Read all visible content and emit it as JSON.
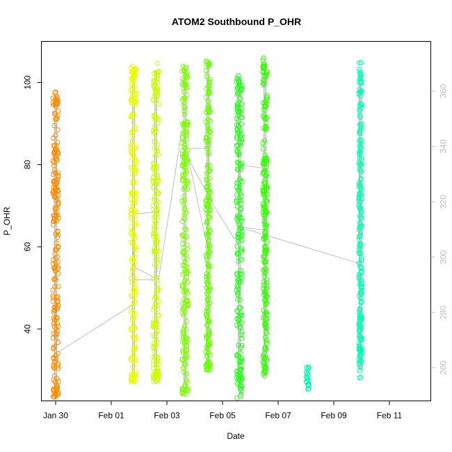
{
  "chart_data": {
    "type": "scatter",
    "title": "ATOM2 Southbound P_OHR",
    "xlabel": "Date",
    "ylabel": "P_OHR",
    "x_unit": "days since Jan 29 (x tick labels show dates)",
    "xlim": [
      -0.55,
      12.2
    ],
    "ylim": [
      22.5,
      110
    ],
    "x_ticks": [
      {
        "value": 1,
        "label": "Jan 30"
      },
      {
        "value": 3,
        "label": "Feb 01"
      },
      {
        "value": 5,
        "label": "Feb 03"
      },
      {
        "value": 7,
        "label": "Feb 05"
      },
      {
        "value": 9,
        "label": "Feb 07"
      },
      {
        "value": 11,
        "label": "Feb 09"
      },
      {
        "value": 13,
        "label": "Feb 11"
      }
    ],
    "y_ticks": [
      40,
      60,
      80,
      100
    ],
    "y2_ticks": [
      260,
      280,
      300,
      320,
      340,
      360
    ],
    "y2lim": [
      248,
      378
    ],
    "grid": false,
    "legend": "none",
    "colors": {
      "frame": "#000000",
      "trace": "#bebebe",
      "right_axis": "#bebebe"
    },
    "series": [
      {
        "color": "#ff8c00",
        "x_range": [
          0.9,
          1.1
        ],
        "y_min": 24,
        "y_max": 98,
        "clusters": [
          [
            24.5,
            12
          ],
          [
            95,
            12
          ]
        ]
      },
      {
        "color": "#e6ff00",
        "x_range": [
          3.7,
          3.9
        ],
        "y_min": 27,
        "y_max": 104,
        "clusters": [
          [
            28,
            10
          ],
          [
            103,
            10
          ]
        ]
      },
      {
        "color": "#ccff00",
        "x_range": [
          4.5,
          4.7
        ],
        "y_min": 27,
        "y_max": 105,
        "clusters": [
          [
            28,
            10
          ]
        ]
      },
      {
        "color": "#7fff00",
        "x_range": [
          5.55,
          5.75
        ],
        "y_min": 24,
        "y_max": 104,
        "clusters": [
          [
            25,
            12
          ]
        ]
      },
      {
        "color": "#66ff00",
        "x_range": [
          6.4,
          6.55
        ],
        "y_min": 30,
        "y_max": 106,
        "clusters": [
          [
            31,
            8
          ]
        ]
      },
      {
        "color": "#26ff1a",
        "x_range": [
          7.5,
          7.7
        ],
        "y_min": 23,
        "y_max": 102,
        "clusters": [
          [
            27,
            10
          ]
        ]
      },
      {
        "color": "#33ff00",
        "x_range": [
          8.45,
          8.6
        ],
        "y_min": 28,
        "y_max": 106,
        "clusters": [
          [
            32,
            6
          ]
        ]
      },
      {
        "color": "#00ffb0",
        "x_range": [
          10.0,
          10.1
        ],
        "y_min": 26,
        "y_max": 31,
        "clusters": [
          [
            26.5,
            4
          ]
        ]
      },
      {
        "color": "#00ffb0",
        "x_range": [
          11.9,
          12.0
        ],
        "y_min": 28,
        "y_max": 105,
        "clusters": [
          [
            34,
            8
          ]
        ]
      }
    ],
    "trace_line": [
      [
        0.9,
        36
      ],
      [
        1.05,
        37
      ],
      [
        0.95,
        60
      ],
      [
        1.05,
        40
      ],
      [
        1.0,
        34
      ],
      [
        3.8,
        46
      ],
      [
        3.75,
        74
      ],
      [
        3.85,
        52
      ],
      [
        4.6,
        52
      ],
      [
        4.65,
        68.5
      ],
      [
        3.8,
        68
      ],
      [
        3.85,
        55
      ],
      [
        4.7,
        52
      ],
      [
        5.6,
        91
      ],
      [
        5.7,
        84
      ],
      [
        6.45,
        60
      ],
      [
        6.5,
        84
      ],
      [
        5.7,
        84
      ],
      [
        5.65,
        83
      ],
      [
        6.6,
        71
      ],
      [
        7.6,
        60
      ],
      [
        7.62,
        80
      ],
      [
        8.6,
        79
      ],
      [
        8.55,
        64
      ],
      [
        7.5,
        65
      ],
      [
        11.9,
        56
      ],
      [
        11.95,
        60
      ],
      [
        11.9,
        80
      ],
      [
        12.0,
        70
      ]
    ]
  }
}
